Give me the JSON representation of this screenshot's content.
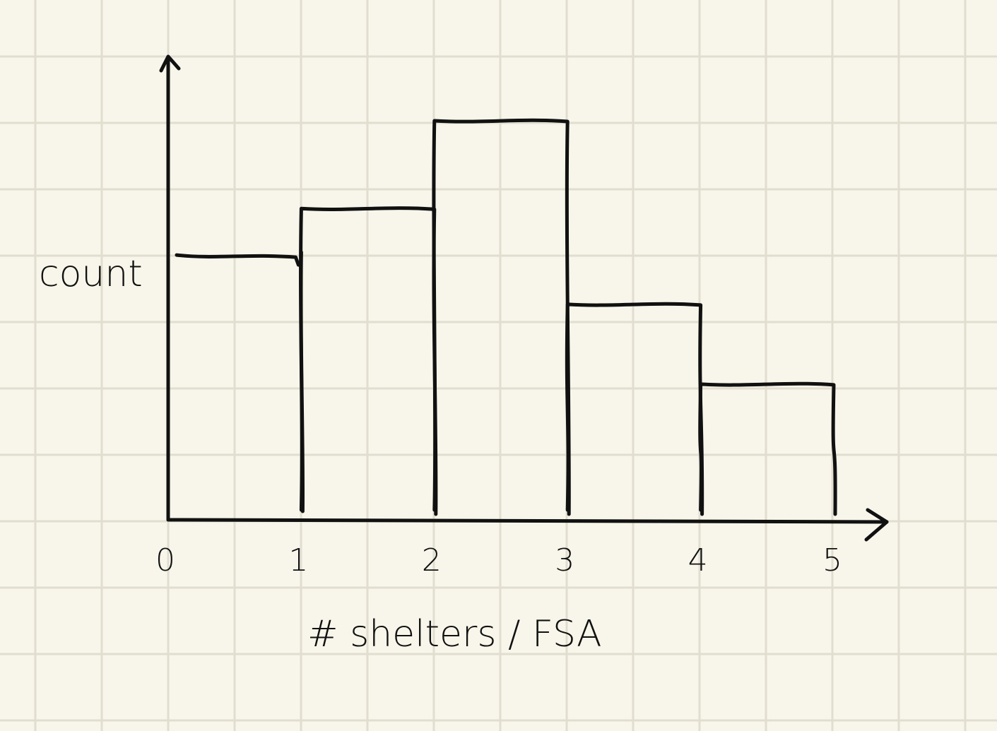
{
  "chart_data": {
    "type": "bar",
    "xlabel": "# shelters / FSA",
    "ylabel": "count",
    "x_ticks": [
      "0",
      "1",
      "2",
      "3",
      "4",
      "5"
    ],
    "bins": [
      {
        "x0": 0,
        "x1": 1,
        "value": 0.66
      },
      {
        "x0": 1,
        "x1": 2,
        "value": 0.78
      },
      {
        "x0": 2,
        "x1": 3,
        "value": 1.0
      },
      {
        "x0": 3,
        "x1": 4,
        "value": 0.54
      },
      {
        "x0": 4,
        "x1": 5,
        "value": 0.34
      }
    ],
    "xlim": [
      0,
      5
    ],
    "ylim": [
      0,
      1.15
    ],
    "grid": true,
    "y_ticks_shown": false,
    "style": "hand-drawn on grid paper"
  },
  "colors": {
    "paper": "#f8f6ea",
    "grid": "#e1ded0",
    "ink": "#111111"
  }
}
